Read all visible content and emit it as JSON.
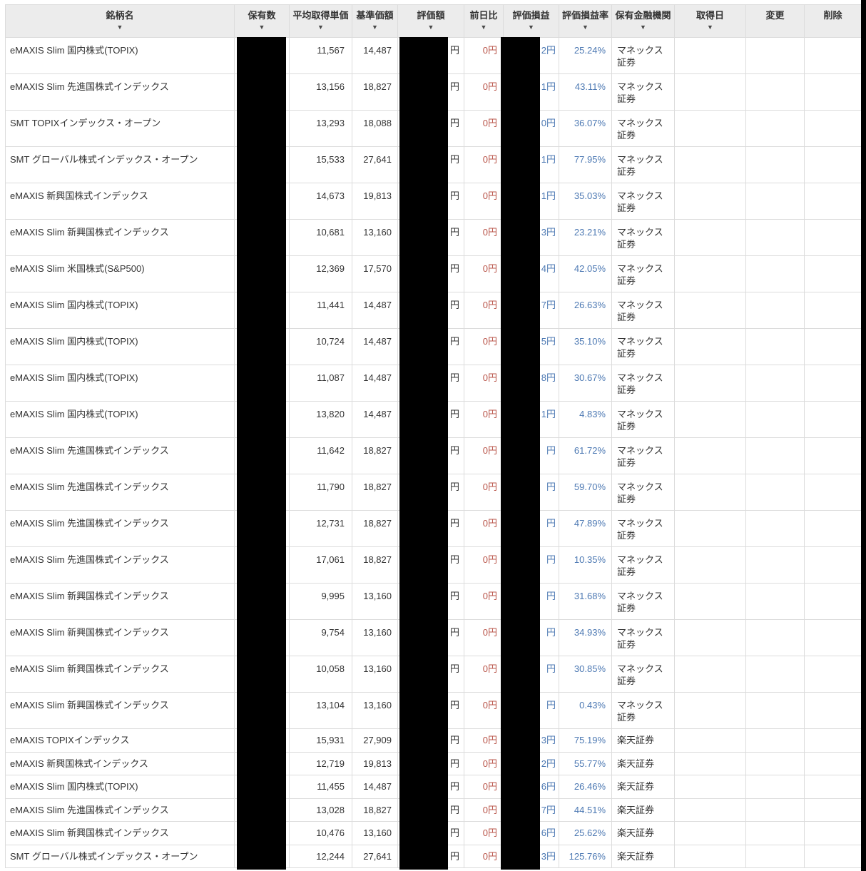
{
  "table": {
    "sort_icon": "▼",
    "columns": [
      {
        "key": "name",
        "label": "銘柄名",
        "sortable": true
      },
      {
        "key": "quantity",
        "label": "保有数",
        "sortable": true
      },
      {
        "key": "avg_price",
        "label": "平均取得単価",
        "sortable": true
      },
      {
        "key": "nav",
        "label": "基準価額",
        "sortable": true
      },
      {
        "key": "value",
        "label": "評価額",
        "sortable": true
      },
      {
        "key": "day_change",
        "label": "前日比",
        "sortable": true
      },
      {
        "key": "pl",
        "label": "評価損益",
        "sortable": true
      },
      {
        "key": "pl_rate",
        "label": "評価損益率",
        "sortable": true
      },
      {
        "key": "broker",
        "label": "保有金融機関",
        "sortable": true
      },
      {
        "key": "acquired_date",
        "label": "取得日",
        "sortable": true
      },
      {
        "key": "edit",
        "label": "変更",
        "sortable": false
      },
      {
        "key": "delete",
        "label": "削除",
        "sortable": false
      }
    ],
    "rows": [
      {
        "name": "eMAXIS Slim 国内株式(TOPIX)",
        "quantity": "",
        "avg_price": "11,567",
        "nav": "14,487",
        "value": "円",
        "day_change": "0円",
        "pl": "2円",
        "pl_rate": "25.24%",
        "broker": "マネックス証券",
        "acquired_date": "",
        "edit": "",
        "delete": ""
      },
      {
        "name": "eMAXIS Slim 先進国株式インデックス",
        "quantity": "",
        "avg_price": "13,156",
        "nav": "18,827",
        "value": "円",
        "day_change": "0円",
        "pl": "1円",
        "pl_rate": "43.11%",
        "broker": "マネックス証券",
        "acquired_date": "",
        "edit": "",
        "delete": ""
      },
      {
        "name": "SMT TOPIXインデックス・オープン",
        "quantity": "",
        "avg_price": "13,293",
        "nav": "18,088",
        "value": "円",
        "day_change": "0円",
        "pl": "0円",
        "pl_rate": "36.07%",
        "broker": "マネックス証券",
        "acquired_date": "",
        "edit": "",
        "delete": ""
      },
      {
        "name": "SMT グローバル株式インデックス・オープン",
        "quantity": "",
        "avg_price": "15,533",
        "nav": "27,641",
        "value": "円",
        "day_change": "0円",
        "pl": "1円",
        "pl_rate": "77.95%",
        "broker": "マネックス証券",
        "acquired_date": "",
        "edit": "",
        "delete": ""
      },
      {
        "name": "eMAXIS 新興国株式インデックス",
        "quantity": "",
        "avg_price": "14,673",
        "nav": "19,813",
        "value": "円",
        "day_change": "0円",
        "pl": "1円",
        "pl_rate": "35.03%",
        "broker": "マネックス証券",
        "acquired_date": "",
        "edit": "",
        "delete": ""
      },
      {
        "name": "eMAXIS Slim 新興国株式インデックス",
        "quantity": "",
        "avg_price": "10,681",
        "nav": "13,160",
        "value": "円",
        "day_change": "0円",
        "pl": "3円",
        "pl_rate": "23.21%",
        "broker": "マネックス証券",
        "acquired_date": "",
        "edit": "",
        "delete": ""
      },
      {
        "name": "eMAXIS Slim 米国株式(S&P500)",
        "quantity": "",
        "avg_price": "12,369",
        "nav": "17,570",
        "value": "円",
        "day_change": "0円",
        "pl": "4円",
        "pl_rate": "42.05%",
        "broker": "マネックス証券",
        "acquired_date": "",
        "edit": "",
        "delete": ""
      },
      {
        "name": "eMAXIS Slim 国内株式(TOPIX)",
        "quantity": "",
        "avg_price": "11,441",
        "nav": "14,487",
        "value": "円",
        "day_change": "0円",
        "pl": "7円",
        "pl_rate": "26.63%",
        "broker": "マネックス証券",
        "acquired_date": "",
        "edit": "",
        "delete": ""
      },
      {
        "name": "eMAXIS Slim 国内株式(TOPIX)",
        "quantity": "",
        "avg_price": "10,724",
        "nav": "14,487",
        "value": "円",
        "day_change": "0円",
        "pl": "5円",
        "pl_rate": "35.10%",
        "broker": "マネックス証券",
        "acquired_date": "",
        "edit": "",
        "delete": ""
      },
      {
        "name": "eMAXIS Slim 国内株式(TOPIX)",
        "quantity": "",
        "avg_price": "11,087",
        "nav": "14,487",
        "value": "円",
        "day_change": "0円",
        "pl": "8円",
        "pl_rate": "30.67%",
        "broker": "マネックス証券",
        "acquired_date": "",
        "edit": "",
        "delete": ""
      },
      {
        "name": "eMAXIS Slim 国内株式(TOPIX)",
        "quantity": "",
        "avg_price": "13,820",
        "nav": "14,487",
        "value": "円",
        "day_change": "0円",
        "pl": "1円",
        "pl_rate": "4.83%",
        "broker": "マネックス証券",
        "acquired_date": "",
        "edit": "",
        "delete": ""
      },
      {
        "name": "eMAXIS Slim 先進国株式インデックス",
        "quantity": "",
        "avg_price": "11,642",
        "nav": "18,827",
        "value": "円",
        "day_change": "0円",
        "pl": "円",
        "pl_rate": "61.72%",
        "broker": "マネックス証券",
        "acquired_date": "",
        "edit": "",
        "delete": ""
      },
      {
        "name": "eMAXIS Slim 先進国株式インデックス",
        "quantity": "",
        "avg_price": "11,790",
        "nav": "18,827",
        "value": "円",
        "day_change": "0円",
        "pl": "円",
        "pl_rate": "59.70%",
        "broker": "マネックス証券",
        "acquired_date": "",
        "edit": "",
        "delete": ""
      },
      {
        "name": "eMAXIS Slim 先進国株式インデックス",
        "quantity": "",
        "avg_price": "12,731",
        "nav": "18,827",
        "value": "円",
        "day_change": "0円",
        "pl": "円",
        "pl_rate": "47.89%",
        "broker": "マネックス証券",
        "acquired_date": "",
        "edit": "",
        "delete": ""
      },
      {
        "name": "eMAXIS Slim 先進国株式インデックス",
        "quantity": "",
        "avg_price": "17,061",
        "nav": "18,827",
        "value": "円",
        "day_change": "0円",
        "pl": "円",
        "pl_rate": "10.35%",
        "broker": "マネックス証券",
        "acquired_date": "",
        "edit": "",
        "delete": ""
      },
      {
        "name": "eMAXIS Slim 新興国株式インデックス",
        "quantity": "",
        "avg_price": "9,995",
        "nav": "13,160",
        "value": "円",
        "day_change": "0円",
        "pl": "円",
        "pl_rate": "31.68%",
        "broker": "マネックス証券",
        "acquired_date": "",
        "edit": "",
        "delete": ""
      },
      {
        "name": "eMAXIS Slim 新興国株式インデックス",
        "quantity": "",
        "avg_price": "9,754",
        "nav": "13,160",
        "value": "円",
        "day_change": "0円",
        "pl": "円",
        "pl_rate": "34.93%",
        "broker": "マネックス証券",
        "acquired_date": "",
        "edit": "",
        "delete": ""
      },
      {
        "name": "eMAXIS Slim 新興国株式インデックス",
        "quantity": "",
        "avg_price": "10,058",
        "nav": "13,160",
        "value": "円",
        "day_change": "0円",
        "pl": "円",
        "pl_rate": "30.85%",
        "broker": "マネックス証券",
        "acquired_date": "",
        "edit": "",
        "delete": ""
      },
      {
        "name": "eMAXIS Slim 新興国株式インデックス",
        "quantity": "",
        "avg_price": "13,104",
        "nav": "13,160",
        "value": "円",
        "day_change": "0円",
        "pl": "円",
        "pl_rate": "0.43%",
        "broker": "マネックス証券",
        "acquired_date": "",
        "edit": "",
        "delete": ""
      },
      {
        "name": "eMAXIS TOPIXインデックス",
        "quantity": "",
        "avg_price": "15,931",
        "nav": "27,909",
        "value": "円",
        "day_change": "0円",
        "pl": "3円",
        "pl_rate": "75.19%",
        "broker": "楽天証券",
        "acquired_date": "",
        "edit": "",
        "delete": ""
      },
      {
        "name": "eMAXIS 新興国株式インデックス",
        "quantity": "",
        "avg_price": "12,719",
        "nav": "19,813",
        "value": "円",
        "day_change": "0円",
        "pl": "2円",
        "pl_rate": "55.77%",
        "broker": "楽天証券",
        "acquired_date": "",
        "edit": "",
        "delete": ""
      },
      {
        "name": "eMAXIS Slim 国内株式(TOPIX)",
        "quantity": "",
        "avg_price": "11,455",
        "nav": "14,487",
        "value": "円",
        "day_change": "0円",
        "pl": "6円",
        "pl_rate": "26.46%",
        "broker": "楽天証券",
        "acquired_date": "",
        "edit": "",
        "delete": ""
      },
      {
        "name": "eMAXIS Slim 先進国株式インデックス",
        "quantity": "",
        "avg_price": "13,028",
        "nav": "18,827",
        "value": "円",
        "day_change": "0円",
        "pl": "7円",
        "pl_rate": "44.51%",
        "broker": "楽天証券",
        "acquired_date": "",
        "edit": "",
        "delete": ""
      },
      {
        "name": "eMAXIS Slim 新興国株式インデックス",
        "quantity": "",
        "avg_price": "10,476",
        "nav": "13,160",
        "value": "円",
        "day_change": "0円",
        "pl": "6円",
        "pl_rate": "25.62%",
        "broker": "楽天証券",
        "acquired_date": "",
        "edit": "",
        "delete": ""
      },
      {
        "name": "SMT グローバル株式インデックス・オープン",
        "quantity": "",
        "avg_price": "12,244",
        "nav": "27,641",
        "value": "円",
        "day_change": "0円",
        "pl": "3円",
        "pl_rate": "125.76%",
        "broker": "楽天証券",
        "acquired_date": "",
        "edit": "",
        "delete": ""
      }
    ]
  },
  "colors": {
    "day_change_negative_red": "#b9554a",
    "profit_blue": "#4d79b3",
    "header_background": "#ececec",
    "text": "#333333",
    "redaction_black": "#000000"
  }
}
